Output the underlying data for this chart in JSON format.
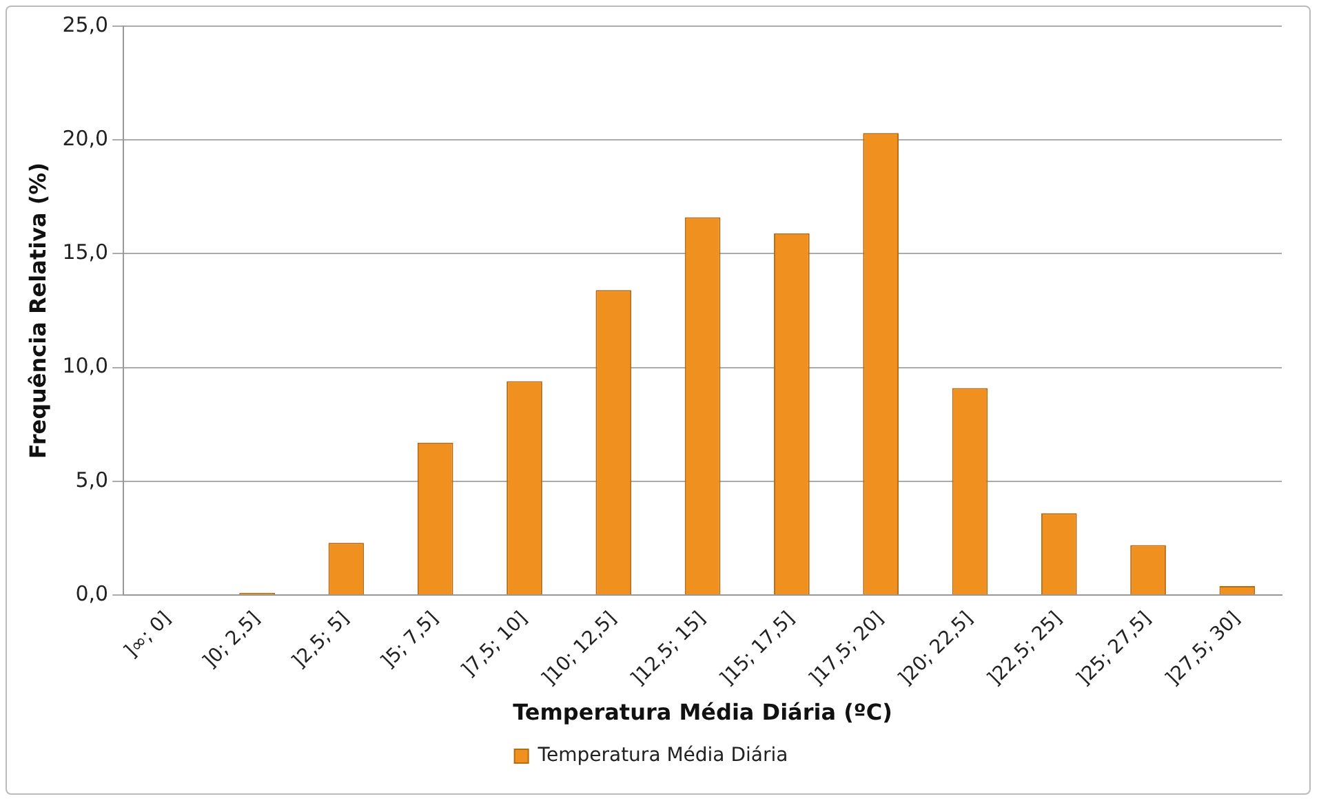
{
  "chart_data": {
    "type": "bar",
    "xlabel": "Temperatura Média Diária (ºC)",
    "ylabel": "Frequência Relativa (%)",
    "categories": [
      "]∞; 0]",
      "]0; 2,5]",
      "]2,5; 5]",
      "]5; 7,5]",
      "]7,5; 10]",
      "]10; 12,5]",
      "]12,5; 15]",
      "]15; 17,5]",
      "]17,5; 20]",
      "]20; 22,5]",
      "]22,5; 25]",
      "]25; 27,5]",
      "]27,5; 30]"
    ],
    "series": [
      {
        "name": "Temperatura Média Diária",
        "color": "#f0901e",
        "values": [
          0,
          0.1,
          2.3,
          6.7,
          9.4,
          13.4,
          16.6,
          15.9,
          20.3,
          9.1,
          3.6,
          2.2,
          0.4
        ]
      }
    ],
    "ylim": [
      0,
      25
    ],
    "yticks": [
      {
        "value": 0,
        "label": "0,0"
      },
      {
        "value": 5,
        "label": "5,0"
      },
      {
        "value": 10,
        "label": "10,0"
      },
      {
        "value": 15,
        "label": "15,0"
      },
      {
        "value": 20,
        "label": "20,0"
      },
      {
        "value": 25,
        "label": "25,0"
      }
    ],
    "grid": "y",
    "legend": "bottom"
  }
}
